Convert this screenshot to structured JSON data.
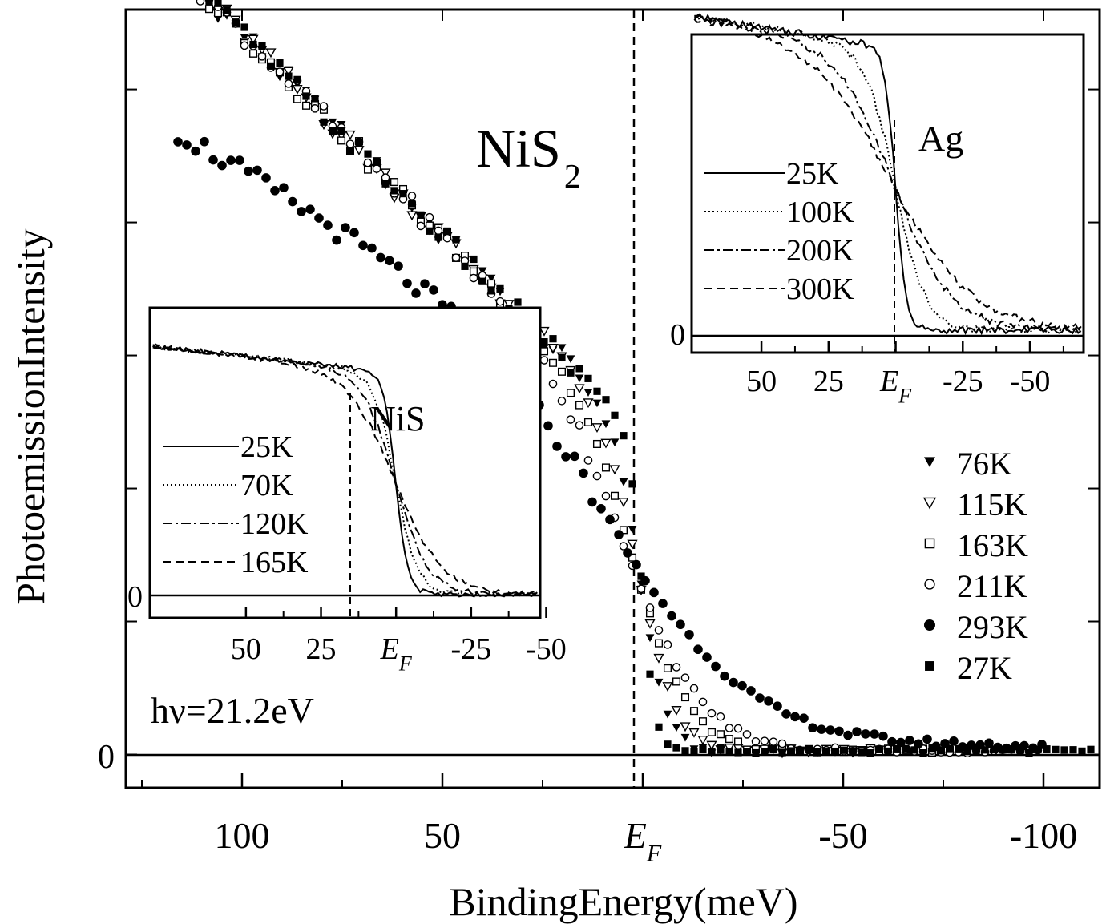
{
  "chart_data": [
    {
      "id": "main",
      "type": "scatter",
      "title": "NiS2",
      "title_base": "NiS",
      "title_sub": "2",
      "annotation": "hν=21.2eV",
      "xlabel": "BindingEnergy(meV)",
      "ylabel": "PhotoemissionIntensity",
      "xlim": [
        129,
        -114
      ],
      "ylim": [
        -0.25,
        5.6
      ],
      "x_ticks": [
        {
          "value": 100,
          "label": "100"
        },
        {
          "value": 50,
          "label": "50"
        },
        {
          "value": 0,
          "label": "E",
          "sub": "F"
        },
        {
          "value": -50,
          "label": "-50"
        },
        {
          "value": -100,
          "label": "-100"
        }
      ],
      "y_zero_label": "0",
      "ef_line": 0,
      "legend_position": "middle-right",
      "series": [
        {
          "name": "76K",
          "marker": "triangle-down-filled"
        },
        {
          "name": "115K",
          "marker": "triangle-down-open"
        },
        {
          "name": "163K",
          "marker": "square-open"
        },
        {
          "name": "211K",
          "marker": "circle-open"
        },
        {
          "name": "293K",
          "marker": "circle-filled"
        },
        {
          "name": "27K",
          "marker": "square-filled"
        }
      ]
    },
    {
      "id": "inset_nis",
      "type": "line",
      "title": "NiS",
      "xlim": [
        82,
        -48
      ],
      "ylim": [
        -0.12,
        1.45
      ],
      "x_ticks": [
        {
          "value": 50,
          "label": "50"
        },
        {
          "value": 25,
          "label": "25"
        },
        {
          "value": 0,
          "label": "E",
          "sub": "F"
        },
        {
          "value": -25,
          "label": "-25"
        },
        {
          "value": -50,
          "label": "-50"
        }
      ],
      "y_zero_label": "0",
      "series": [
        {
          "name": "25K",
          "style": "solid"
        },
        {
          "name": "70K",
          "style": "dotted"
        },
        {
          "name": "120K",
          "style": "dashdot"
        },
        {
          "name": "165K",
          "style": "dashed"
        }
      ]
    },
    {
      "id": "inset_ag",
      "type": "line",
      "title": "Ag",
      "xlim": [
        76,
        -70
      ],
      "ylim": [
        -0.08,
        1.05
      ],
      "x_ticks": [
        {
          "value": 50,
          "label": "50"
        },
        {
          "value": 25,
          "label": "25"
        },
        {
          "value": 0,
          "label": "E",
          "sub": "F"
        },
        {
          "value": -25,
          "label": "-25"
        },
        {
          "value": -50,
          "label": "-50"
        }
      ],
      "y_zero_label": "0",
      "series": [
        {
          "name": "25K",
          "style": "solid"
        },
        {
          "name": "100K",
          "style": "dotted"
        },
        {
          "name": "200K",
          "style": "dashdot"
        },
        {
          "name": "300K",
          "style": "dashed"
        }
      ]
    }
  ]
}
